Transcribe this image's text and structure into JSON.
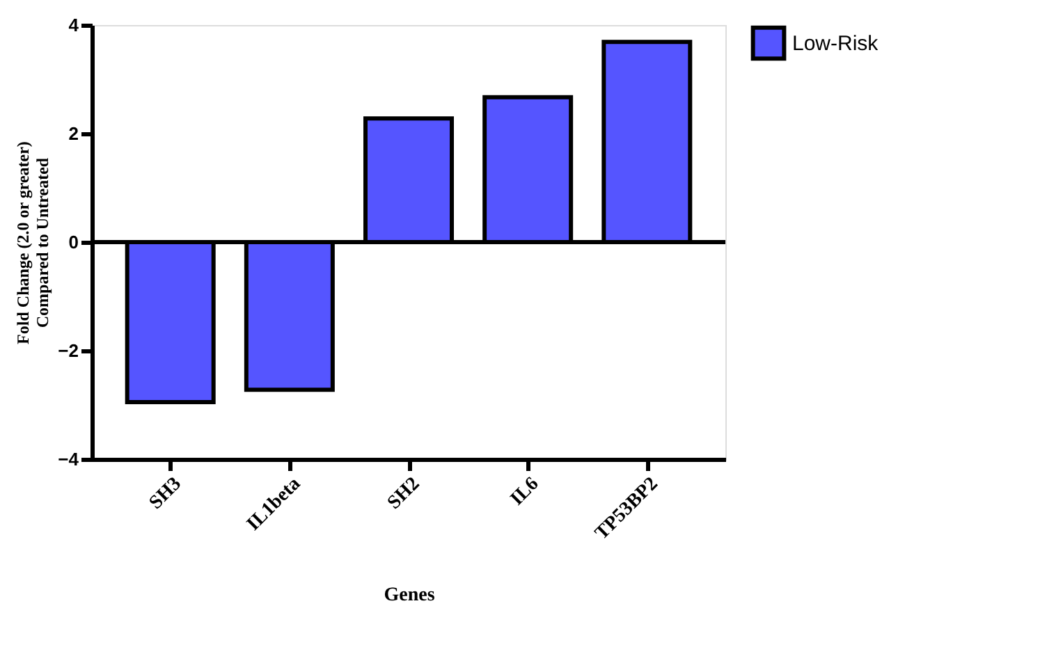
{
  "chart_data": {
    "type": "bar",
    "xlabel": "Genes",
    "ylabel": "Fold Change (2.0 or greater)\nCompared to Untreated",
    "categories": [
      "SH3",
      "IL1beta",
      "SH2",
      "IL6",
      "TP53BP2"
    ],
    "series": [
      {
        "name": "Low-Risk",
        "color": "#5555ff",
        "values": [
          -2.95,
          -2.72,
          2.28,
          2.67,
          3.69
        ]
      }
    ],
    "ylim": [
      -4,
      4
    ],
    "yticks": [
      -4,
      -2,
      0,
      2,
      4
    ],
    "grid": false,
    "legend": "top right",
    "ref_lines": [
      {
        "axis": "y",
        "value": 0,
        "color": "#000000"
      }
    ]
  }
}
